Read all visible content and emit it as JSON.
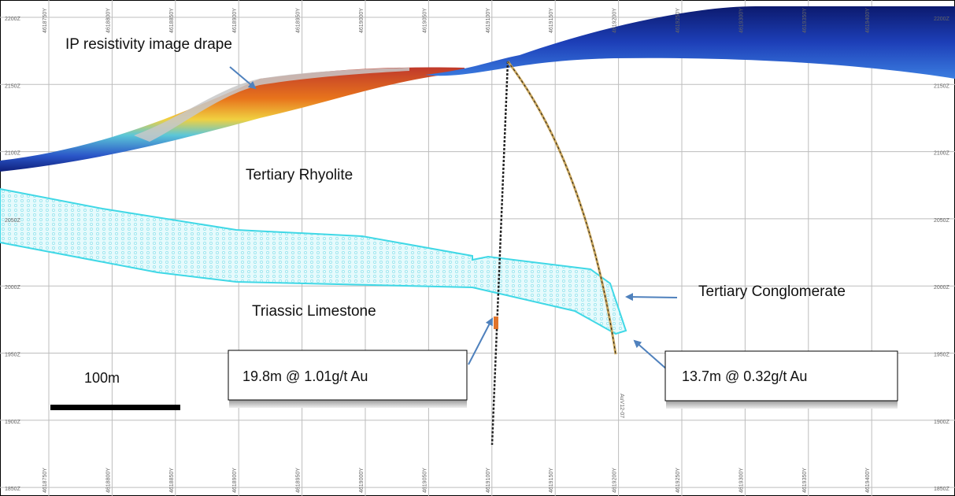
{
  "annotations": {
    "drape": "IP resistivity image drape",
    "rhyolite": "Tertiary Rhyolite",
    "limestone": "Triassic Limestone",
    "conglomerate": "Tertiary Conglomerate"
  },
  "callouts": [
    "19.8m @ 1.01g/t Au",
    "13.7m @ 0.32g/t Au"
  ],
  "scale_bar": "100m",
  "elevations": [
    "2200Z",
    "2150Z",
    "2100Z",
    "2050Z",
    "2000Z",
    "1950Z",
    "1900Z",
    "1850Z"
  ],
  "northings": [
    "4618750Y",
    "4618800Y",
    "4618850Y",
    "4618900Y",
    "4618950Y",
    "4619000Y",
    "4619050Y",
    "4619100Y",
    "4619150Y",
    "4619200Y",
    "4619250Y",
    "4619300Y",
    "4619350Y",
    "4619400Y"
  ],
  "drill_hole": "AuV12-07"
}
